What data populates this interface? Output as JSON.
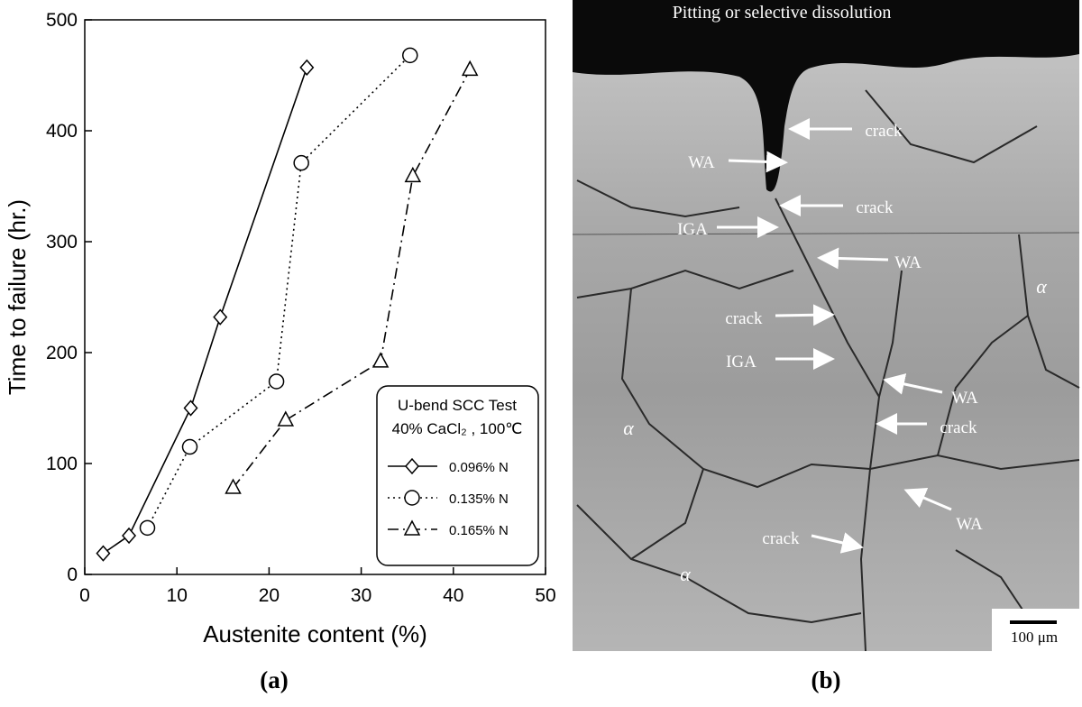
{
  "chart_data": {
    "type": "line",
    "xlabel": "Austenite content (%)",
    "ylabel": "Time to failure (hr.)",
    "xlim": [
      0,
      50
    ],
    "xticks": [
      0,
      10,
      20,
      30,
      40,
      50
    ],
    "ylim": [
      0,
      500
    ],
    "yticks": [
      0,
      100,
      200,
      300,
      400,
      500
    ],
    "legend_title": [
      "U-bend SCC Test",
      "40% CaCl₂ , 100℃"
    ],
    "legend_position": "lower right",
    "series": [
      {
        "name": "0.096% N",
        "color": "#000000",
        "marker": "diamond",
        "dash": "solid",
        "x": [
          2,
          4.8,
          11.5,
          14.7,
          24.1
        ],
        "values": [
          19,
          35,
          150,
          232,
          457
        ]
      },
      {
        "name": "0.135% N",
        "color": "#000000",
        "marker": "circle",
        "dash": "dotted",
        "x": [
          6.8,
          11.4,
          20.8,
          23.5,
          35.3
        ],
        "values": [
          42,
          115,
          174,
          371,
          468
        ]
      },
      {
        "name": "0.165% N",
        "color": "#000000",
        "marker": "triangle",
        "dash": "dashdot",
        "x": [
          16.1,
          21.8,
          32.1,
          35.6,
          41.8
        ],
        "values": [
          78,
          139,
          192,
          359,
          455
        ]
      }
    ]
  },
  "panel_labels": [
    "(a)",
    "(b)"
  ],
  "micrograph": {
    "labels": [
      "Pitting or selective dissolution",
      "crack",
      "WA",
      "crack",
      "IGA",
      "WA",
      "crack",
      "IGA",
      "WA",
      "crack",
      "WA",
      "crack",
      "α",
      "α",
      "α"
    ],
    "scale_bar": "100 μm"
  }
}
